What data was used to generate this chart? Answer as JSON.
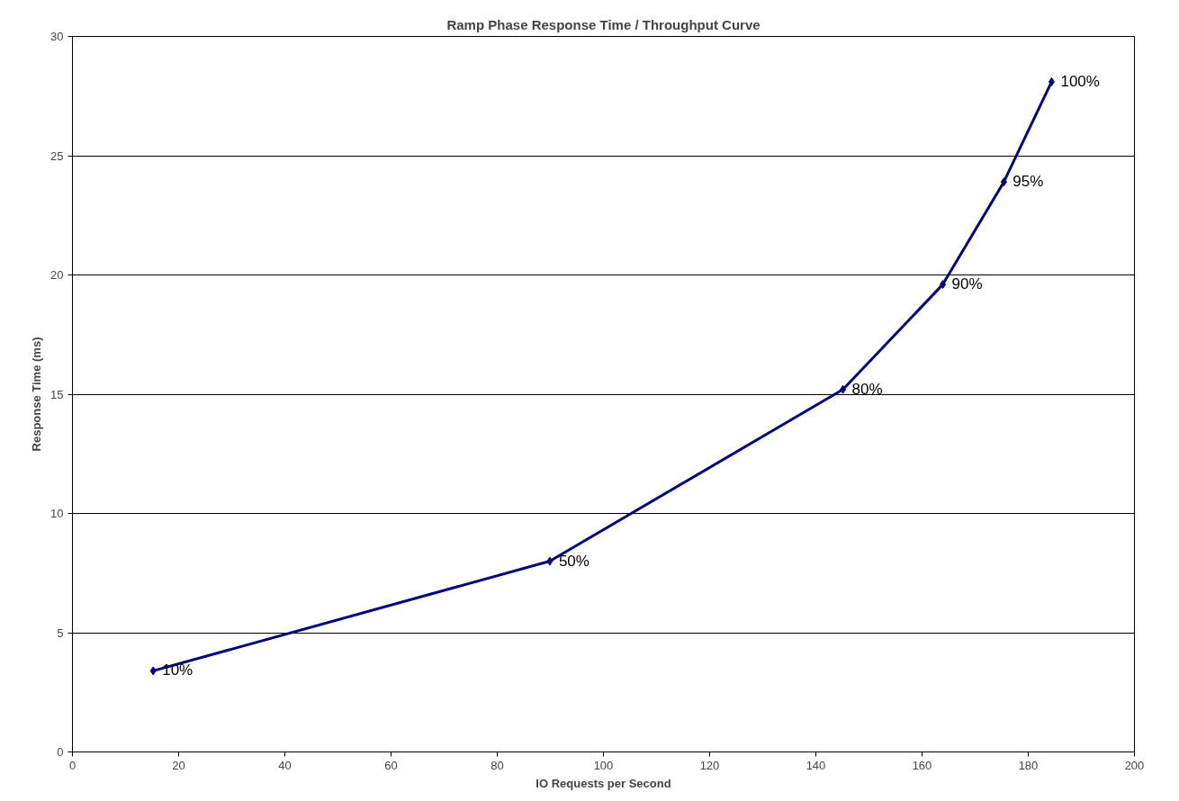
{
  "chart_data": {
    "type": "line",
    "title": "Ramp Phase Response Time / Throughput Curve",
    "xlabel": "IO Requests per Second",
    "ylabel": "Response Time (ms)",
    "x": [
      15.2,
      89.9,
      145.1,
      163.9,
      175.4,
      184.4
    ],
    "series": [
      {
        "color": "#000080",
        "values": [
          3.4,
          8.0,
          15.2,
          19.6,
          23.9,
          28.1
        ]
      }
    ],
    "annotations": [
      {
        "text": "10%",
        "x": 15.2,
        "y": 3.4
      },
      {
        "text": "50%",
        "x": 89.9,
        "y": 8.0
      },
      {
        "text": "80%",
        "x": 145.1,
        "y": 15.2
      },
      {
        "text": "90%",
        "x": 163.9,
        "y": 19.6
      },
      {
        "text": "95%",
        "x": 175.4,
        "y": 23.9
      },
      {
        "text": "100%",
        "x": 184.4,
        "y": 28.1
      }
    ],
    "xlim": [
      0,
      200
    ],
    "xticks": [
      0,
      20,
      40,
      60,
      80,
      100,
      120,
      140,
      160,
      180,
      200
    ],
    "ylim": [
      0,
      30
    ],
    "yticks": [
      0,
      5,
      10,
      15,
      20,
      25,
      30
    ],
    "grid": "y",
    "marker": "diamond",
    "line_style": "solid"
  }
}
